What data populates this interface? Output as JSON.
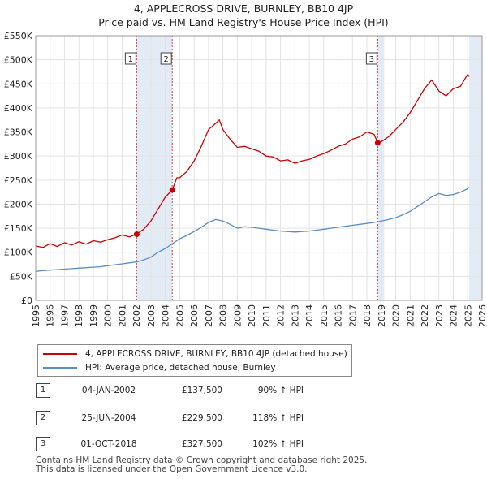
{
  "title": "4, APPLECROSS DRIVE, BURNLEY, BB10 4JP",
  "subtitle": "Price paid vs. HM Land Registry's House Price Index (HPI)",
  "legend": {
    "property_label": "4, APPLECROSS DRIVE, BURNLEY, BB10 4JP (detached house)",
    "hpi_label": "HPI: Average price, detached house, Burnley"
  },
  "colors": {
    "property": "#cc0000",
    "hpi": "#5b8cc6",
    "shade": "#dce6f2",
    "marker_line": "#cc4444"
  },
  "sales": [
    {
      "num": "1",
      "date": "04-JAN-2002",
      "price": "£137,500",
      "hpi": "90% ↑ HPI"
    },
    {
      "num": "2",
      "date": "25-JUN-2004",
      "price": "£229,500",
      "hpi": "118% ↑ HPI"
    },
    {
      "num": "3",
      "date": "01-OCT-2018",
      "price": "£327,500",
      "hpi": "102% ↑ HPI"
    }
  ],
  "footer": {
    "line1": "Contains HM Land Registry data © Crown copyright and database right 2025.",
    "line2": "This data is licensed under the Open Government Licence v3.0."
  },
  "chart_data": {
    "type": "line",
    "xlim": [
      1995,
      2026
    ],
    "ylim": [
      0,
      550000
    ],
    "ytick_values": [
      0,
      50000,
      100000,
      150000,
      200000,
      250000,
      300000,
      350000,
      400000,
      450000,
      500000,
      550000
    ],
    "ytick_labels": [
      "£0",
      "£50K",
      "£100K",
      "£150K",
      "£200K",
      "£250K",
      "£300K",
      "£350K",
      "£400K",
      "£450K",
      "£500K",
      "£550K"
    ],
    "xtick_labels": [
      "1995",
      "1996",
      "1997",
      "1998",
      "1999",
      "2000",
      "2001",
      "2002",
      "2003",
      "2004",
      "2005",
      "2006",
      "2007",
      "2008",
      "2009",
      "2010",
      "2011",
      "2012",
      "2013",
      "2014",
      "2015",
      "2016",
      "2017",
      "2018",
      "2019",
      "2020",
      "2021",
      "2022",
      "2023",
      "2024",
      "2025",
      "2026"
    ],
    "shaded_spans": [
      [
        2002.01,
        2004.48
      ],
      [
        2018.75,
        2019.2
      ],
      [
        2025.1,
        2026
      ]
    ],
    "sale_markers": [
      {
        "label": "1",
        "x": 2002.01,
        "y": 137500
      },
      {
        "label": "2",
        "x": 2004.48,
        "y": 229500
      },
      {
        "label": "3",
        "x": 2018.75,
        "y": 327500
      }
    ],
    "series": [
      {
        "name": "4, APPLECROSS DRIVE, BURNLEY, BB10 4JP (detached house)",
        "x": [
          1995,
          1995.5,
          1996,
          1996.5,
          1997,
          1997.5,
          1998,
          1998.5,
          1999,
          1999.5,
          2000,
          2000.5,
          2001,
          2001.5,
          2002,
          2002.5,
          2003,
          2003.5,
          2004,
          2004.48,
          2004.8,
          2005,
          2005.5,
          2006,
          2006.5,
          2007,
          2007.5,
          2007.75,
          2008,
          2008.5,
          2009,
          2009.5,
          2010,
          2010.5,
          2011,
          2011.5,
          2012,
          2012.5,
          2013,
          2013.5,
          2014,
          2014.5,
          2015,
          2015.5,
          2016,
          2016.5,
          2017,
          2017.5,
          2018,
          2018.5,
          2018.75,
          2019,
          2019.5,
          2020,
          2020.5,
          2021,
          2021.5,
          2022,
          2022.5,
          2023,
          2023.5,
          2024,
          2024.5,
          2025,
          2025.1
        ],
        "values": [
          113000,
          110000,
          118000,
          112000,
          120000,
          115000,
          122000,
          117000,
          124000,
          121000,
          126000,
          130000,
          136000,
          132000,
          137500,
          148000,
          165000,
          190000,
          215000,
          229500,
          255000,
          255000,
          268000,
          290000,
          320000,
          355000,
          368000,
          375000,
          355000,
          335000,
          318000,
          320000,
          315000,
          310000,
          300000,
          298000,
          290000,
          292000,
          285000,
          290000,
          293000,
          300000,
          305000,
          312000,
          320000,
          325000,
          335000,
          340000,
          350000,
          345000,
          327500,
          330000,
          340000,
          355000,
          370000,
          390000,
          415000,
          440000,
          458000,
          435000,
          425000,
          440000,
          445000,
          470000,
          465000
        ]
      },
      {
        "name": "HPI: Average price, detached house, Burnley",
        "x": [
          1995,
          1995.5,
          1996,
          1996.5,
          1997,
          1997.5,
          1998,
          1998.5,
          1999,
          1999.5,
          2000,
          2000.5,
          2001,
          2001.5,
          2002,
          2002.5,
          2003,
          2003.5,
          2004,
          2004.5,
          2005,
          2005.5,
          2006,
          2006.5,
          2007,
          2007.5,
          2008,
          2008.5,
          2009,
          2009.5,
          2010,
          2010.5,
          2011,
          2011.5,
          2012,
          2012.5,
          2013,
          2013.5,
          2014,
          2014.5,
          2015,
          2015.5,
          2016,
          2016.5,
          2017,
          2017.5,
          2018,
          2018.5,
          2019,
          2019.5,
          2020,
          2020.5,
          2021,
          2021.5,
          2022,
          2022.5,
          2023,
          2023.5,
          2024,
          2024.5,
          2025,
          2025.1
        ],
        "values": [
          60000,
          62000,
          63000,
          64000,
          65000,
          66000,
          67000,
          68000,
          69000,
          70000,
          72000,
          74000,
          76000,
          78000,
          80000,
          84000,
          90000,
          100000,
          108000,
          118000,
          128000,
          135000,
          143000,
          152000,
          162000,
          168000,
          165000,
          158000,
          150000,
          153000,
          152000,
          150000,
          148000,
          146000,
          144000,
          143000,
          142000,
          143000,
          144000,
          146000,
          148000,
          150000,
          152000,
          154000,
          156000,
          158000,
          160000,
          162000,
          165000,
          168000,
          172000,
          178000,
          185000,
          195000,
          205000,
          215000,
          222000,
          218000,
          220000,
          225000,
          232000,
          235000
        ]
      }
    ]
  }
}
